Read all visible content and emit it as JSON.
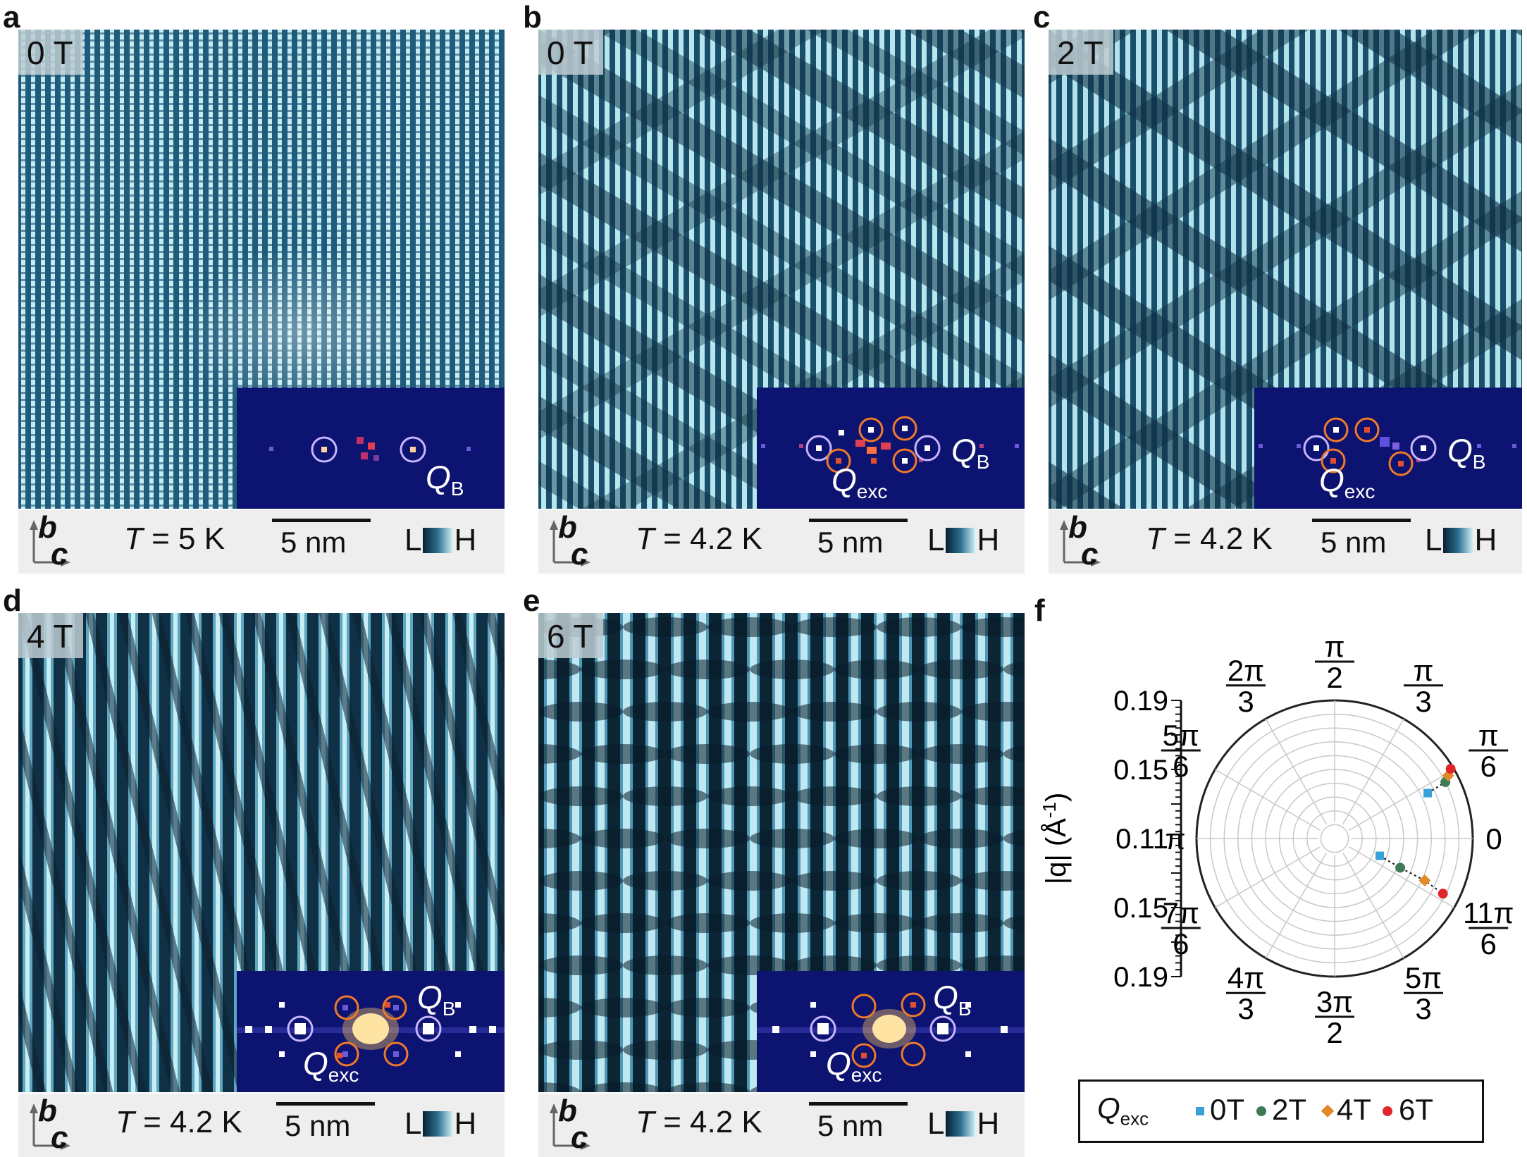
{
  "panels": [
    {
      "letter": "a",
      "field": "0 T",
      "temp": "= 5 K",
      "scale": "5 nm",
      "qb": "Q",
      "qb_sub": "B",
      "qexc": "",
      "qexc_sub": ""
    },
    {
      "letter": "b",
      "field": "0 T",
      "temp": "= 4.2 K",
      "scale": "5 nm",
      "qb": "Q",
      "qb_sub": "B",
      "qexc": "Q",
      "qexc_sub": "exc"
    },
    {
      "letter": "c",
      "field": "2 T",
      "temp": "= 4.2 K",
      "scale": "5 nm",
      "qb": "Q",
      "qb_sub": "B",
      "qexc": "Q",
      "qexc_sub": "exc"
    },
    {
      "letter": "d",
      "field": "4 T",
      "temp": "= 4.2 K",
      "scale": "5 nm",
      "qb": "Q",
      "qb_sub": "B",
      "qexc": "Q",
      "qexc_sub": "exc"
    },
    {
      "letter": "e",
      "field": "6 T",
      "temp": "= 4.2 K",
      "scale": "5 nm",
      "qb": "Q",
      "qb_sub": "B",
      "qexc": "Q",
      "qexc_sub": "exc"
    }
  ],
  "common": {
    "t_symbol": "T",
    "axis_b": "b",
    "axis_c": "c",
    "cbar_low": "L",
    "cbar_high": "H"
  },
  "polar": {
    "letter": "f",
    "radial_label": "|q| (Å",
    "radial_label_sup": "-1",
    "radial_label_close": ")",
    "ticks_upper": [
      "0.19",
      "0.15",
      "0.11"
    ],
    "ticks_lower": [
      "0.15",
      "0.19"
    ],
    "angles": [
      {
        "n": "0",
        "d": ""
      },
      {
        "n": "π",
        "d": "6"
      },
      {
        "n": "π",
        "d": "3"
      },
      {
        "n": "π",
        "d": "2"
      },
      {
        "n": "2π",
        "d": "3"
      },
      {
        "n": "5π",
        "d": "6"
      },
      {
        "n": "π",
        "d": ""
      },
      {
        "n": "7π",
        "d": "6"
      },
      {
        "n": "4π",
        "d": "3"
      },
      {
        "n": "3π",
        "d": "2"
      },
      {
        "n": "5π",
        "d": "3"
      },
      {
        "n": "11π",
        "d": "6"
      }
    ]
  },
  "legend": {
    "title": "Q",
    "title_sub": "exc",
    "items": [
      "0T",
      "2T",
      "4T",
      "6T"
    ]
  },
  "chart_data": {
    "type": "scatter",
    "coordinate_system": "polar",
    "radial_axis": {
      "label": "|q| (Å-1)",
      "ticks": [
        0.11,
        0.15,
        0.19
      ]
    },
    "series": [
      {
        "name": "0T",
        "color": "#3aa0d8",
        "marker": "square",
        "points": [
          {
            "theta_deg": 26,
            "r": 0.165
          },
          {
            "theta_deg": -21,
            "r": 0.125
          }
        ]
      },
      {
        "name": "2T",
        "color": "#3d7a55",
        "marker": "circle",
        "points": [
          {
            "theta_deg": 27,
            "r": 0.18
          },
          {
            "theta_deg": -24,
            "r": 0.142
          }
        ]
      },
      {
        "name": "4T",
        "color": "#e38a28",
        "marker": "diamond",
        "points": [
          {
            "theta_deg": 29,
            "r": 0.184
          },
          {
            "theta_deg": -25,
            "r": 0.162
          }
        ]
      },
      {
        "name": "6T",
        "color": "#e0262b",
        "marker": "circle",
        "points": [
          {
            "theta_deg": 31,
            "r": 0.188
          },
          {
            "theta_deg": -27,
            "r": 0.178
          }
        ]
      }
    ]
  }
}
